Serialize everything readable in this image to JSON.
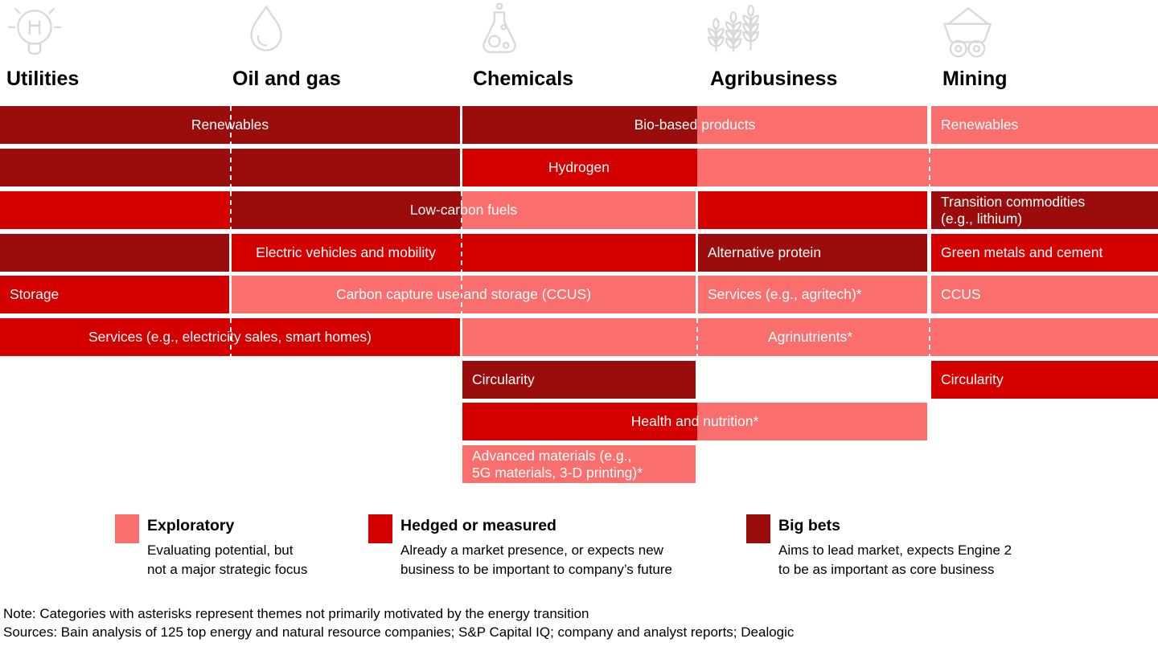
{
  "palette": {
    "exploratory": "#FA6E6E",
    "hedged": "#D40000",
    "big_bets": "#9B0C0C",
    "icon_stroke": "#D8D8D8",
    "bar_label_color": "#FFFFFF",
    "text_color": "#000000"
  },
  "columns": [
    {
      "id": "utilities",
      "label": "Utilities",
      "icon": "lightbulb-icon"
    },
    {
      "id": "oilgas",
      "label": "Oil and gas",
      "icon": "flame-icon"
    },
    {
      "id": "chemicals",
      "label": "Chemicals",
      "icon": "flask-icon"
    },
    {
      "id": "agribusiness",
      "label": "Agribusiness",
      "icon": "wheat-icon"
    },
    {
      "id": "mining",
      "label": "Mining",
      "icon": "mine-cart-icon"
    }
  ],
  "rows": [
    [
      {
        "label": "Renewables",
        "cols": [
          "utilities",
          "oilgas"
        ],
        "levels": [
          "big_bets",
          "big_bets"
        ],
        "dashes": [
          true
        ],
        "align": "center"
      },
      {
        "label": "Bio-based products",
        "cols": [
          "chemicals",
          "agribusiness"
        ],
        "levels": [
          "big_bets",
          "exploratory"
        ],
        "dashes": [
          false
        ],
        "align": "center"
      },
      {
        "label": "Renewables",
        "cols": [
          "mining"
        ],
        "levels": [
          "exploratory"
        ],
        "align": "left"
      }
    ],
    [
      {
        "label": "",
        "cols": [
          "utilities",
          "oilgas"
        ],
        "levels": [
          "big_bets",
          "big_bets"
        ],
        "dashes": [
          true
        ],
        "align": "center"
      },
      {
        "label": "Hydrogen",
        "cols": [
          "chemicals",
          "agribusiness",
          "mining"
        ],
        "levels": [
          "hedged",
          "exploratory",
          "exploratory"
        ],
        "dashes": [
          false,
          true
        ],
        "align": "center",
        "label_cols": [
          "chemicals"
        ]
      }
    ],
    [
      {
        "label": "Low-carbon fuels",
        "cols": [
          "utilities",
          "oilgas",
          "chemicals"
        ],
        "levels": [
          "hedged",
          "big_bets",
          "exploratory"
        ],
        "dashes": [
          true,
          true
        ],
        "align": "center",
        "label_cols": [
          "oilgas",
          "chemicals"
        ]
      },
      {
        "label": "",
        "cols": [
          "agribusiness"
        ],
        "levels": [
          "hedged"
        ],
        "align": "center"
      },
      {
        "label": "Transition commodities\n(e.g., lithium)",
        "cols": [
          "mining"
        ],
        "levels": [
          "big_bets"
        ],
        "align": "left"
      }
    ],
    [
      {
        "label": "",
        "cols": [
          "utilities"
        ],
        "levels": [
          "big_bets"
        ],
        "align": "center"
      },
      {
        "label": "Electric vehicles and mobility",
        "cols": [
          "oilgas",
          "chemicals"
        ],
        "levels": [
          "hedged",
          "hedged"
        ],
        "dashes": [
          true
        ],
        "align": "center",
        "label_cols": [
          "oilgas"
        ]
      },
      {
        "label": "Alternative protein",
        "cols": [
          "agribusiness"
        ],
        "levels": [
          "big_bets"
        ],
        "align": "left"
      },
      {
        "label": "Green metals and cement",
        "cols": [
          "mining"
        ],
        "levels": [
          "hedged"
        ],
        "align": "left"
      }
    ],
    [
      {
        "label": "Storage",
        "cols": [
          "utilities"
        ],
        "levels": [
          "hedged"
        ],
        "align": "left"
      },
      {
        "label": "Carbon capture use and storage (CCUS)",
        "cols": [
          "oilgas",
          "chemicals"
        ],
        "levels": [
          "exploratory",
          "exploratory"
        ],
        "dashes": [
          true
        ],
        "align": "center"
      },
      {
        "label": "Services (e.g., agritech)*",
        "cols": [
          "agribusiness"
        ],
        "levels": [
          "exploratory"
        ],
        "align": "left"
      },
      {
        "label": "CCUS",
        "cols": [
          "mining"
        ],
        "levels": [
          "exploratory"
        ],
        "align": "left"
      }
    ],
    [
      {
        "label": "Services (e.g., electricity sales, smart homes)",
        "cols": [
          "utilities",
          "oilgas"
        ],
        "levels": [
          "hedged",
          "hedged"
        ],
        "dashes": [
          true
        ],
        "align": "center"
      },
      {
        "label": "Agrinutrients*",
        "cols": [
          "chemicals",
          "agribusiness",
          "mining"
        ],
        "levels": [
          "exploratory",
          "exploratory",
          "exploratory"
        ],
        "dashes": [
          true,
          true
        ],
        "align": "center"
      }
    ],
    [
      {
        "label": "Circularity",
        "cols": [
          "chemicals"
        ],
        "levels": [
          "big_bets"
        ],
        "align": "left"
      },
      {
        "label": "Circularity",
        "cols": [
          "mining"
        ],
        "levels": [
          "hedged"
        ],
        "align": "left"
      }
    ],
    [
      {
        "label": "Health and nutrition*",
        "cols": [
          "chemicals",
          "agribusiness"
        ],
        "levels": [
          "hedged",
          "exploratory"
        ],
        "dashes": [
          false
        ],
        "align": "center"
      }
    ],
    [
      {
        "label": "Advanced materials (e.g.,\n5G materials, 3-D printing)*",
        "cols": [
          "chemicals"
        ],
        "levels": [
          "exploratory"
        ],
        "align": "left"
      }
    ]
  ],
  "legend": [
    {
      "level": "exploratory",
      "title": "Exploratory",
      "desc": "Evaluating potential, but\nnot a major strategic focus"
    },
    {
      "level": "hedged",
      "title": "Hedged or measured",
      "desc": "Already a market presence, or expects new\nbusiness to be important to company’s future"
    },
    {
      "level": "big_bets",
      "title": "Big bets",
      "desc": "Aims to lead market, expects Engine 2\nto be as important as core business"
    }
  ],
  "notes": {
    "note": "Note: Categories with asterisks represent themes not primarily motivated by the energy transition",
    "sources": "Sources: Bain analysis of 125 top energy and natural resource companies; S&P Capital IQ; company and analyst reports; Dealogic"
  },
  "chart_data": {
    "type": "heatmap",
    "industries": [
      "Utilities",
      "Oil and gas",
      "Chemicals",
      "Agribusiness",
      "Mining"
    ],
    "levels": [
      "Exploratory",
      "Hedged or measured",
      "Big bets"
    ],
    "themes": [
      {
        "theme": "Renewables",
        "values": {
          "Utilities": "Big bets",
          "Oil and gas": "Big bets",
          "Mining": "Exploratory"
        }
      },
      {
        "theme": "Bio-based products",
        "values": {
          "Chemicals": "Big bets",
          "Agribusiness": "Exploratory"
        }
      },
      {
        "theme": "Hydrogen",
        "values": {
          "Utilities": "Big bets",
          "Oil and gas": "Big bets",
          "Chemicals": "Hedged or measured",
          "Agribusiness": "Exploratory",
          "Mining": "Exploratory"
        }
      },
      {
        "theme": "Low-carbon fuels",
        "values": {
          "Utilities": "Hedged or measured",
          "Oil and gas": "Big bets",
          "Chemicals": "Exploratory",
          "Agribusiness": "Hedged or measured"
        }
      },
      {
        "theme": "Transition commodities (e.g., lithium)",
        "values": {
          "Mining": "Big bets"
        }
      },
      {
        "theme": "Electric vehicles and mobility",
        "values": {
          "Utilities": "Big bets",
          "Oil and gas": "Hedged or measured",
          "Chemicals": "Hedged or measured"
        }
      },
      {
        "theme": "Alternative protein",
        "values": {
          "Agribusiness": "Big bets"
        }
      },
      {
        "theme": "Green metals and cement",
        "values": {
          "Mining": "Hedged or measured"
        }
      },
      {
        "theme": "Storage",
        "values": {
          "Utilities": "Hedged or measured"
        }
      },
      {
        "theme": "Carbon capture use and storage (CCUS)",
        "values": {
          "Oil and gas": "Exploratory",
          "Chemicals": "Exploratory"
        }
      },
      {
        "theme": "Services (e.g., agritech)*",
        "values": {
          "Agribusiness": "Exploratory"
        }
      },
      {
        "theme": "CCUS",
        "values": {
          "Mining": "Exploratory"
        }
      },
      {
        "theme": "Services (e.g., electricity sales, smart homes)",
        "values": {
          "Utilities": "Hedged or measured",
          "Oil and gas": "Hedged or measured"
        }
      },
      {
        "theme": "Agrinutrients*",
        "values": {
          "Chemicals": "Exploratory",
          "Agribusiness": "Exploratory",
          "Mining": "Exploratory"
        }
      },
      {
        "theme": "Circularity",
        "values": {
          "Chemicals": "Big bets",
          "Mining": "Hedged or measured"
        }
      },
      {
        "theme": "Health and nutrition*",
        "values": {
          "Chemicals": "Hedged or measured",
          "Agribusiness": "Exploratory"
        }
      },
      {
        "theme": "Advanced materials (e.g., 5G materials, 3-D printing)*",
        "values": {
          "Chemicals": "Exploratory"
        }
      }
    ]
  }
}
